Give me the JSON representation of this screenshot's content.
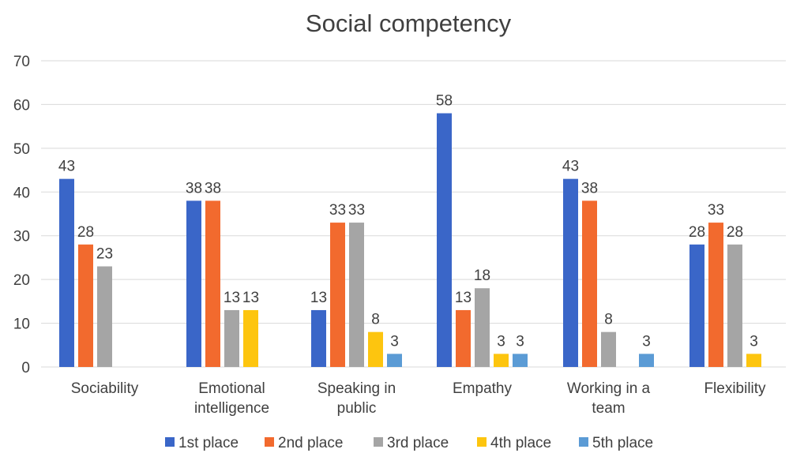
{
  "chart_data": {
    "type": "bar",
    "title": "Social competency",
    "xlabel": "",
    "ylabel": "",
    "ylim": [
      0,
      70
    ],
    "yticks": [
      0,
      10,
      20,
      30,
      40,
      50,
      60,
      70
    ],
    "grid": true,
    "legend_position": "bottom",
    "categories": [
      [
        "Sociability"
      ],
      [
        "Emotional",
        "intelligence"
      ],
      [
        "Speaking in",
        "public"
      ],
      [
        "Empathy"
      ],
      [
        "Working in a",
        "team"
      ],
      [
        "Flexibility"
      ]
    ],
    "series": [
      {
        "name": "1st place",
        "color": "#3a66c8",
        "values": [
          43,
          38,
          13,
          58,
          43,
          28
        ]
      },
      {
        "name": "2nd place",
        "color": "#f26a2e",
        "values": [
          28,
          38,
          33,
          13,
          38,
          33
        ]
      },
      {
        "name": "3rd place",
        "color": "#a5a5a5",
        "values": [
          23,
          13,
          33,
          18,
          8,
          28
        ]
      },
      {
        "name": "4th place",
        "color": "#fdc50f",
        "values": [
          null,
          13,
          8,
          3,
          null,
          3
        ]
      },
      {
        "name": "5th place",
        "color": "#5b9bd5",
        "values": [
          null,
          null,
          3,
          3,
          3,
          null
        ]
      }
    ]
  }
}
